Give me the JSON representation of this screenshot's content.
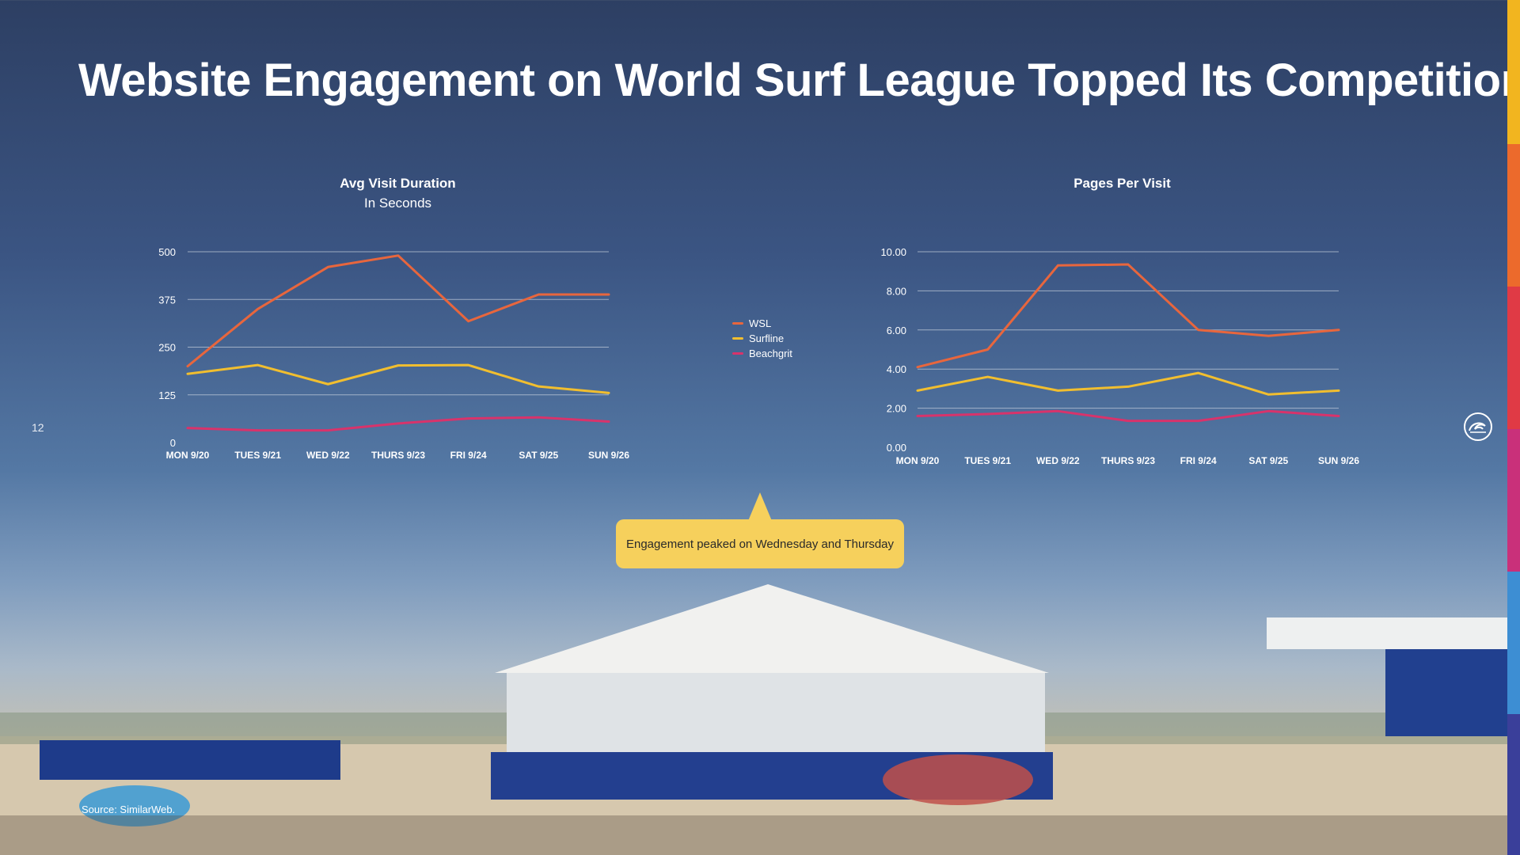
{
  "slide": {
    "title": "Website Engagement on World Surf League Topped Its Competition",
    "page_number": "12",
    "source": "Source: SimilarWeb.",
    "callout": "Engagement peaked on Wednesday and Thursday",
    "sidebar_colors": [
      "#f2b51f",
      "#ec6a2c",
      "#e03a45",
      "#c9307a",
      "#3d8ed3",
      "#3a3f9a"
    ]
  },
  "legend": {
    "items": [
      {
        "label": "WSL",
        "color": "#e8663d"
      },
      {
        "label": "Surfline",
        "color": "#f1be2f"
      },
      {
        "label": "Beachgrit",
        "color": "#d8336b"
      }
    ]
  },
  "chart_data": [
    {
      "type": "line",
      "title": "Avg Visit Duration",
      "subtitle": "In Seconds",
      "categories": [
        "MON 9/20",
        "TUES 9/21",
        "WED 9/22",
        "THURS 9/23",
        "FRI 9/24",
        "SAT 9/25",
        "SUN 9/26"
      ],
      "yticks": [
        "0",
        "125",
        "250",
        "375",
        "500"
      ],
      "ylim": [
        0,
        500
      ],
      "grid": true,
      "series": [
        {
          "name": "WSL",
          "color": "#e8663d",
          "values": [
            200,
            350,
            460,
            490,
            318,
            388,
            388
          ]
        },
        {
          "name": "Surfline",
          "color": "#f1be2f",
          "values": [
            180,
            203,
            153,
            202,
            203,
            147,
            130
          ]
        },
        {
          "name": "Beachgrit",
          "color": "#d8336b",
          "values": [
            38,
            32,
            32,
            50,
            63,
            66,
            55
          ]
        }
      ]
    },
    {
      "type": "line",
      "title": "Pages Per Visit",
      "categories": [
        "MON 9/20",
        "TUES 9/21",
        "WED 9/22",
        "THURS 9/23",
        "FRI 9/24",
        "SAT 9/25",
        "SUN 9/26"
      ],
      "yticks": [
        "0.00",
        "2.00",
        "4.00",
        "6.00",
        "8.00",
        "10.00"
      ],
      "ylim": [
        0,
        10
      ],
      "grid": true,
      "series": [
        {
          "name": "WSL",
          "color": "#e8663d",
          "values": [
            4.1,
            5.0,
            9.3,
            9.35,
            6.0,
            5.7,
            6.0
          ]
        },
        {
          "name": "Surfline",
          "color": "#f1be2f",
          "values": [
            2.9,
            3.6,
            2.9,
            3.1,
            3.8,
            2.7,
            2.9
          ]
        },
        {
          "name": "Beachgrit",
          "color": "#d8336b",
          "values": [
            1.6,
            1.7,
            1.85,
            1.35,
            1.35,
            1.85,
            1.6
          ]
        }
      ]
    }
  ]
}
